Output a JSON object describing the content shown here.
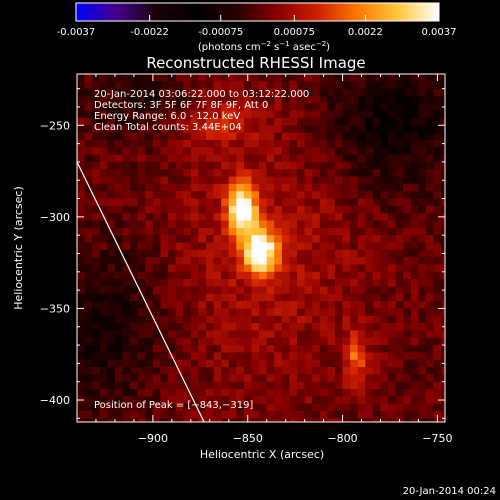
{
  "colorbar": {
    "ticks": [
      "-0.0037",
      "-0.0022",
      "-0.00075",
      "0.00075",
      "0.0022",
      "0.0037"
    ],
    "tick_values": [
      -0.0037,
      -0.0022,
      -0.00075,
      0.00075,
      0.0022,
      0.0037
    ],
    "units_prefix": "(photons cm",
    "units_exp1": "−2",
    "units_mid1": " s",
    "units_exp2": "−1",
    "units_mid2": " asec",
    "units_exp3": "−2",
    "units_suffix": ")"
  },
  "footer": {
    "timestamp": "20-Jan-2014 00:24"
  },
  "chart_data": {
    "type": "heatmap",
    "title": "Reconstructed RHESSI Image",
    "xlabel": "Heliocentric X (arcsec)",
    "ylabel": "Heliocentric Y (arcsec)",
    "xlim": [
      -940,
      -746
    ],
    "ylim": [
      -412,
      -222
    ],
    "x_ticks": [
      -900,
      -850,
      -800,
      -750
    ],
    "y_ticks": [
      -250,
      -300,
      -350,
      -400
    ],
    "x_tick_labels": [
      "−900",
      "−850",
      "−800",
      "−750"
    ],
    "y_tick_labels": [
      "−250",
      "−300",
      "−350",
      "−400"
    ],
    "annotations": [
      "20-Jan-2014 03:06:22.000 to 03:12:22.000",
      "Detectors: 3F 5F 6F 7F 8F 9F, Att 0",
      "Energy Range: 6.0 - 12.0 keV",
      "Clean    Total counts: 3.44E+04"
    ],
    "peak_label": "Position of Peak = [−843,−319]",
    "peak": [
      -843,
      -319
    ],
    "sources": [
      {
        "x": -843,
        "y": -319,
        "peak": 0.0037
      },
      {
        "x": -853,
        "y": -296,
        "peak": 0.0034
      },
      {
        "x": -793,
        "y": -378,
        "peak": 0.0016
      },
      {
        "x": -865,
        "y": -248,
        "peak": 0.0008
      }
    ],
    "limb_line": {
      "x": [
        -940,
        -873
      ],
      "y": [
        -270,
        -412
      ]
    },
    "colormap": [
      "#0000ff",
      "#440088",
      "#1a0008",
      "#000000",
      "#2a0000",
      "#880000",
      "#d02000",
      "#ff7a00",
      "#ffc840",
      "#ffffff"
    ],
    "vmin": -0.0037,
    "vmax": 0.0037
  }
}
